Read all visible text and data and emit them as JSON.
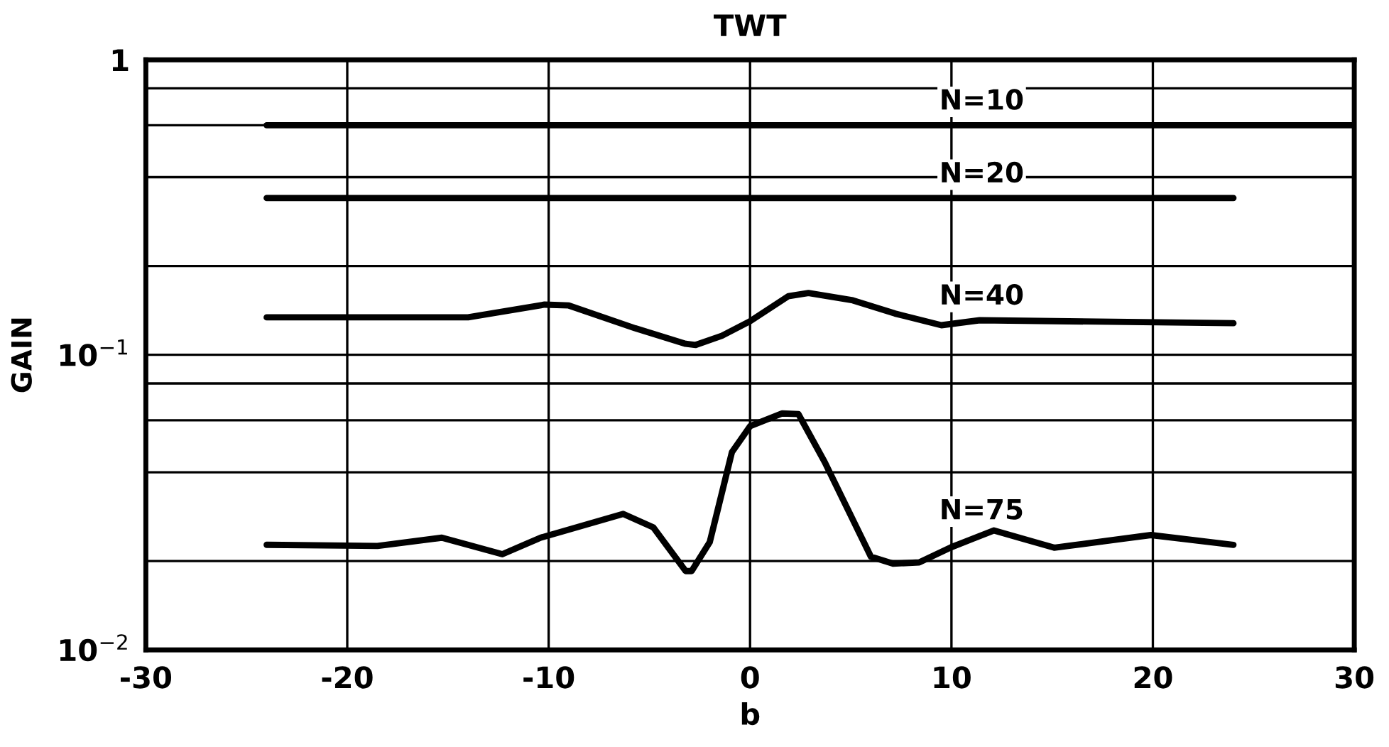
{
  "chart_data": {
    "type": "line",
    "title": "TWT",
    "xlabel": "b",
    "ylabel": "GAIN",
    "log": "y",
    "grid": true,
    "legend": false,
    "xlim": [
      -30,
      30
    ],
    "xticks": [
      -30,
      -20,
      -10,
      0,
      10,
      20,
      30
    ],
    "ylim": [
      0.01,
      1
    ],
    "yticks": [
      {
        "value": 0.01,
        "label": "10$^{−2}$"
      },
      {
        "value": 0.02,
        "label": null
      },
      {
        "value": 0.04,
        "label": null
      },
      {
        "value": 0.06,
        "label": null
      },
      {
        "value": 0.08,
        "label": null
      },
      {
        "value": 0.1,
        "label": "10$^{−1}$"
      },
      {
        "value": 0.2,
        "label": null
      },
      {
        "value": 0.4,
        "label": null
      },
      {
        "value": 0.6,
        "label": null
      },
      {
        "value": 0.8,
        "label": null
      },
      {
        "value": 1,
        "label": "1"
      }
    ],
    "series": [
      {
        "name": "N=10",
        "color": "#000000",
        "x": [
          -24,
          30
        ],
        "values": [
          0.6,
          0.6
        ]
      },
      {
        "name": "N=20",
        "color": "#000000",
        "x": [
          -24,
          24
        ],
        "values": [
          0.34,
          0.34
        ]
      },
      {
        "name": "N=40",
        "color": "#000000",
        "x": [
          -24,
          -14,
          -10.2,
          -9,
          -5.7,
          -3.2,
          -2.7,
          -1.4,
          0,
          1.9,
          2.9,
          5.1,
          7.2,
          9.5,
          11.4,
          24
        ],
        "values": [
          0.134,
          0.134,
          0.148,
          0.147,
          0.123,
          0.109,
          0.108,
          0.116,
          0.13,
          0.158,
          0.162,
          0.153,
          0.138,
          0.126,
          0.131,
          0.128
        ]
      },
      {
        "name": "N=75",
        "color": "#000000",
        "x": [
          -24,
          -18.5,
          -15.3,
          -12.3,
          -10.4,
          -6.3,
          -4.8,
          -3.2,
          -2.9,
          -2,
          -0.9,
          0,
          1.6,
          2.4,
          3.7,
          6,
          7.1,
          8.4,
          10,
          12.1,
          15.1,
          19.9,
          24
        ],
        "values": [
          0.0227,
          0.0225,
          0.024,
          0.0211,
          0.024,
          0.0289,
          0.026,
          0.0185,
          0.0185,
          0.0232,
          0.0468,
          0.0573,
          0.0633,
          0.063,
          0.0434,
          0.0207,
          0.0196,
          0.0198,
          0.0223,
          0.0254,
          0.0222,
          0.0245,
          0.0227
        ]
      }
    ]
  }
}
